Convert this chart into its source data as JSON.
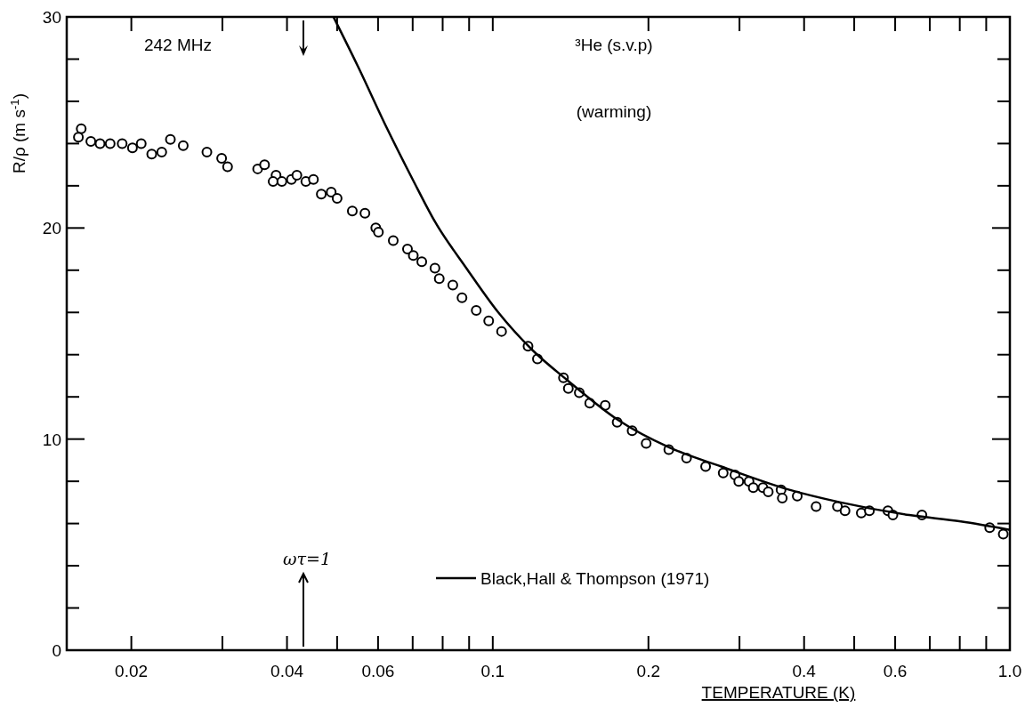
{
  "chart_data": {
    "type": "scatter",
    "xlabel": "TEMPERATURE  (K)",
    "ylabel": "R/ρ  (m s$^{-1}$)",
    "annotations": [
      "242 MHz",
      "³He   (s.v.p)",
      "(warming)",
      "ωτ=1"
    ],
    "log": "x",
    "xlim": [
      0.015,
      1.0
    ],
    "xticks": [
      0.02,
      {
        "value": 0.03,
        "label": null
      },
      0.04,
      {
        "value": 0.05,
        "label": null
      },
      0.06,
      {
        "value": 0.07,
        "label": null
      },
      {
        "value": 0.08,
        "label": null
      },
      {
        "value": 0.09,
        "label": null
      },
      0.1,
      0.2,
      {
        "value": 0.3,
        "label": null
      },
      0.4,
      {
        "value": 0.5,
        "label": null
      },
      0.6,
      {
        "value": 0.7,
        "label": null
      },
      {
        "value": 0.8,
        "label": null
      },
      {
        "value": 0.9,
        "label": null
      },
      {
        "value": 1.0,
        "label": "1.0"
      }
    ],
    "ylim": [
      0,
      30
    ],
    "yticks": [
      0,
      {
        "value": 2,
        "label": null
      },
      {
        "value": 4,
        "label": null
      },
      {
        "value": 6,
        "label": null
      },
      {
        "value": 8,
        "label": null
      },
      10,
      {
        "value": 12,
        "label": null
      },
      {
        "value": 14,
        "label": null
      },
      {
        "value": 16,
        "label": null
      },
      {
        "value": 18,
        "label": null
      },
      20,
      {
        "value": 22,
        "label": null
      },
      {
        "value": 24,
        "label": null
      },
      {
        "value": 26,
        "label": null
      },
      {
        "value": 28,
        "label": null
      },
      30
    ],
    "grid": false,
    "legend": "bottom",
    "marker": "circle",
    "series": [
      {
        "color": "#000000",
        "x": [
          0.016,
          0.0158,
          0.0167,
          0.0174,
          0.0182,
          0.0192,
          0.0201,
          0.0209,
          0.0219,
          0.0229,
          0.0238,
          0.0252,
          0.028,
          0.0299,
          0.0307,
          0.0351,
          0.0362,
          0.0381,
          0.0376,
          0.0391,
          0.0408,
          0.0418,
          0.0435,
          0.045,
          0.0466,
          0.0487,
          0.05,
          0.0535,
          0.0566,
          0.0594,
          0.0601,
          0.0642,
          0.0684,
          0.0702,
          0.0729,
          0.0773,
          0.0788,
          0.0837,
          0.0872,
          0.0929,
          0.0982,
          0.104,
          0.117,
          0.122,
          0.137,
          0.14,
          0.147,
          0.154,
          0.165,
          0.174,
          0.186,
          0.198,
          0.219,
          0.237,
          0.258,
          0.279,
          0.294,
          0.299,
          0.313,
          0.319,
          0.333,
          0.341,
          0.361,
          0.363,
          0.388,
          0.422,
          0.464,
          0.48,
          0.516,
          0.535,
          0.581,
          0.594,
          0.676,
          0.914,
          0.971
        ],
        "values": [
          24.7,
          24.3,
          24.1,
          24.0,
          24.0,
          24.0,
          23.8,
          24.0,
          23.5,
          23.6,
          24.2,
          23.9,
          23.6,
          23.3,
          22.9,
          22.8,
          23.0,
          22.5,
          22.2,
          22.2,
          22.3,
          22.5,
          22.2,
          22.3,
          21.6,
          21.7,
          21.4,
          20.8,
          20.7,
          20.0,
          19.8,
          19.4,
          19.0,
          18.7,
          18.4,
          18.1,
          17.6,
          17.3,
          16.7,
          16.1,
          15.6,
          15.1,
          14.4,
          13.8,
          12.9,
          12.4,
          12.2,
          11.7,
          11.6,
          10.8,
          10.4,
          9.8,
          9.5,
          9.1,
          8.7,
          8.4,
          8.3,
          8.0,
          8.0,
          7.7,
          7.7,
          7.5,
          7.6,
          7.2,
          7.3,
          6.8,
          6.8,
          6.6,
          6.5,
          6.6,
          6.6,
          6.4,
          6.4,
          5.8,
          5.5
        ]
      },
      {
        "type": "line",
        "name": "Black,Hall & Thompson (1971)",
        "color": "#000000",
        "marker": "none",
        "line_style": "solid",
        "x": [
          0.0492,
          0.055,
          0.0625,
          0.07,
          0.0773,
          0.0889,
          0.1025,
          0.1195,
          0.1392,
          0.1748,
          0.2196,
          0.2766,
          0.3745,
          0.471,
          0.639,
          0.804,
          1.0
        ],
        "values": [
          30,
          27.6,
          24.7,
          22.3,
          20.3,
          18.1,
          16.0,
          14.2,
          12.8,
          10.9,
          9.6,
          8.7,
          7.6,
          7.0,
          6.4,
          6.1,
          5.7
        ]
      }
    ]
  }
}
